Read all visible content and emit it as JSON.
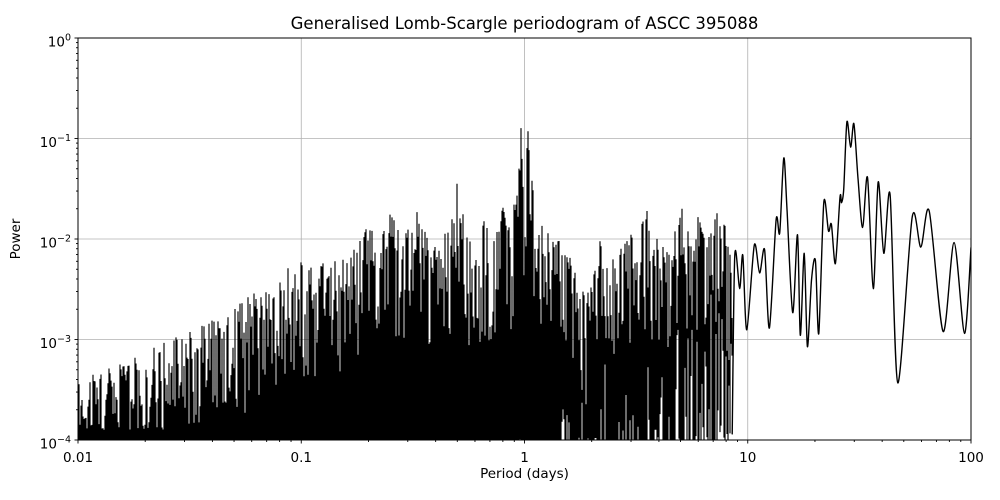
{
  "figure": {
    "title": "Generalised Lomb-Scargle periodogram of ASCC 395088",
    "xlabel": "Period (days)",
    "ylabel": "Power",
    "background_color": "#ffffff",
    "line_color": "#000000",
    "grid_color": "#b0b0b0"
  },
  "chart_data": {
    "type": "line",
    "title": "Generalised Lomb-Scargle periodogram of ASCC 395088",
    "xlabel": "Period (days)",
    "ylabel": "Power",
    "x_scale": "log",
    "y_scale": "log",
    "xlim": [
      0.01,
      100
    ],
    "ylim": [
      0.0001,
      1
    ],
    "grid": true,
    "legend": false,
    "line_color": "#000000",
    "x_ticks": [
      {
        "value": 0.01,
        "label": "0.01"
      },
      {
        "value": 0.1,
        "label": "0.1"
      },
      {
        "value": 1,
        "label": "1"
      },
      {
        "value": 10,
        "label": "10"
      },
      {
        "value": 100,
        "label": "100"
      }
    ],
    "y_ticks": [
      {
        "value": 1,
        "base": "10",
        "exp": "0"
      },
      {
        "value": 0.1,
        "base": "10",
        "exp": "−1"
      },
      {
        "value": 0.01,
        "base": "10",
        "exp": "−2"
      },
      {
        "value": 0.001,
        "base": "10",
        "exp": "−3"
      },
      {
        "value": 0.0001,
        "base": "10",
        "exp": "−4"
      }
    ],
    "main_peaks": [
      {
        "period": 0.96,
        "power": 0.127
      },
      {
        "period": 1.03,
        "power": 0.118
      },
      {
        "period": 14.5,
        "power": 0.064
      },
      {
        "period": 27.8,
        "power": 0.146
      },
      {
        "period": 29.9,
        "power": 0.14
      }
    ],
    "dense_region": {
      "period_range": [
        0.01,
        8.5
      ],
      "note": "unresolved quasi-noise periodogram; values oscillate between the clipped floor (1e-4) and this upper envelope",
      "envelope": [
        [
          0.01,
          0.00043
        ],
        [
          0.014,
          0.00052
        ],
        [
          0.02,
          0.00075
        ],
        [
          0.028,
          0.0011
        ],
        [
          0.033,
          0.00135
        ],
        [
          0.045,
          0.0017
        ],
        [
          0.062,
          0.003
        ],
        [
          0.077,
          0.0046
        ],
        [
          0.1,
          0.006
        ],
        [
          0.112,
          0.0055
        ],
        [
          0.14,
          0.006
        ],
        [
          0.165,
          0.008
        ],
        [
          0.196,
          0.0125
        ],
        [
          0.225,
          0.012
        ],
        [
          0.25,
          0.0175
        ],
        [
          0.29,
          0.011
        ],
        [
          0.33,
          0.0185
        ],
        [
          0.37,
          0.01
        ],
        [
          0.42,
          0.01
        ],
        [
          0.465,
          0.013
        ],
        [
          0.5,
          0.0355
        ],
        [
          0.55,
          0.0115
        ],
        [
          0.6,
          0.008
        ],
        [
          0.66,
          0.015
        ],
        [
          0.72,
          0.0095
        ],
        [
          0.8,
          0.0205
        ],
        [
          0.85,
          0.013
        ],
        [
          0.9,
          0.022
        ],
        [
          0.93,
          0.027
        ],
        [
          0.963,
          0.127
        ],
        [
          1.0,
          0.025
        ],
        [
          1.032,
          0.118
        ],
        [
          1.08,
          0.038
        ],
        [
          1.15,
          0.016
        ],
        [
          1.3,
          0.011
        ],
        [
          1.5,
          0.0095
        ],
        [
          1.7,
          0.0045
        ],
        [
          1.9,
          0.0026
        ],
        [
          2.17,
          0.0095
        ],
        [
          2.4,
          0.008
        ],
        [
          2.7,
          0.008
        ],
        [
          3.0,
          0.011
        ],
        [
          3.55,
          0.019
        ],
        [
          4.0,
          0.009
        ],
        [
          4.55,
          0.011
        ],
        [
          5.05,
          0.02
        ],
        [
          5.5,
          0.012
        ],
        [
          6.0,
          0.0165
        ],
        [
          6.6,
          0.0095
        ],
        [
          7.25,
          0.018
        ],
        [
          7.9,
          0.0135
        ],
        [
          8.5,
          0.006
        ]
      ],
      "prominent_spikes": [
        [
          0.196,
          0.0125
        ],
        [
          0.25,
          0.0175
        ],
        [
          0.33,
          0.0185
        ],
        [
          0.5,
          0.0355
        ],
        [
          0.66,
          0.015
        ],
        [
          0.8,
          0.0205
        ],
        [
          0.9,
          0.022
        ],
        [
          0.93,
          0.027
        ],
        [
          0.963,
          0.127
        ],
        [
          1.032,
          0.118
        ],
        [
          1.08,
          0.038
        ],
        [
          2.17,
          0.0095
        ],
        [
          3.0,
          0.011
        ],
        [
          3.55,
          0.019
        ],
        [
          5.05,
          0.02
        ],
        [
          6.0,
          0.0165
        ],
        [
          7.25,
          0.018
        ],
        [
          7.9,
          0.0135
        ]
      ],
      "noise_floor": 0.0001
    },
    "resolved_region": {
      "period_range": [
        8.5,
        100
      ],
      "points": [
        [
          8.52,
          0.000115
        ],
        [
          8.75,
          0.0069
        ],
        [
          9.2,
          0.0032
        ],
        [
          9.5,
          0.0069
        ],
        [
          9.9,
          0.00125
        ],
        [
          10.7,
          0.0087
        ],
        [
          11.3,
          0.0046
        ],
        [
          11.9,
          0.0078
        ],
        [
          12.5,
          0.0013
        ],
        [
          13.4,
          0.0155
        ],
        [
          13.9,
          0.0115
        ],
        [
          14.5,
          0.064
        ],
        [
          15.0,
          0.019
        ],
        [
          15.9,
          0.00185
        ],
        [
          16.7,
          0.011
        ],
        [
          17.2,
          0.0011
        ],
        [
          17.9,
          0.0072
        ],
        [
          18.5,
          0.00085
        ],
        [
          19.3,
          0.0039
        ],
        [
          20.1,
          0.0061
        ],
        [
          20.8,
          0.00115
        ],
        [
          21.9,
          0.023
        ],
        [
          23.0,
          0.012
        ],
        [
          23.7,
          0.014
        ],
        [
          24.7,
          0.0057
        ],
        [
          25.9,
          0.026
        ],
        [
          26.3,
          0.023
        ],
        [
          26.9,
          0.031
        ],
        [
          27.8,
          0.146
        ],
        [
          28.9,
          0.082
        ],
        [
          29.9,
          0.14
        ],
        [
          31.2,
          0.039
        ],
        [
          32.7,
          0.013
        ],
        [
          34.4,
          0.041
        ],
        [
          36.5,
          0.0032
        ],
        [
          38.4,
          0.037
        ],
        [
          40.7,
          0.0072
        ],
        [
          43.4,
          0.0275
        ],
        [
          47.0,
          0.00037
        ],
        [
          54.5,
          0.0165
        ],
        [
          59.6,
          0.0083
        ],
        [
          65.0,
          0.019
        ],
        [
          75.0,
          0.0012
        ],
        [
          84.0,
          0.0092
        ],
        [
          93.5,
          0.00115
        ],
        [
          100.0,
          0.0082
        ]
      ]
    }
  }
}
